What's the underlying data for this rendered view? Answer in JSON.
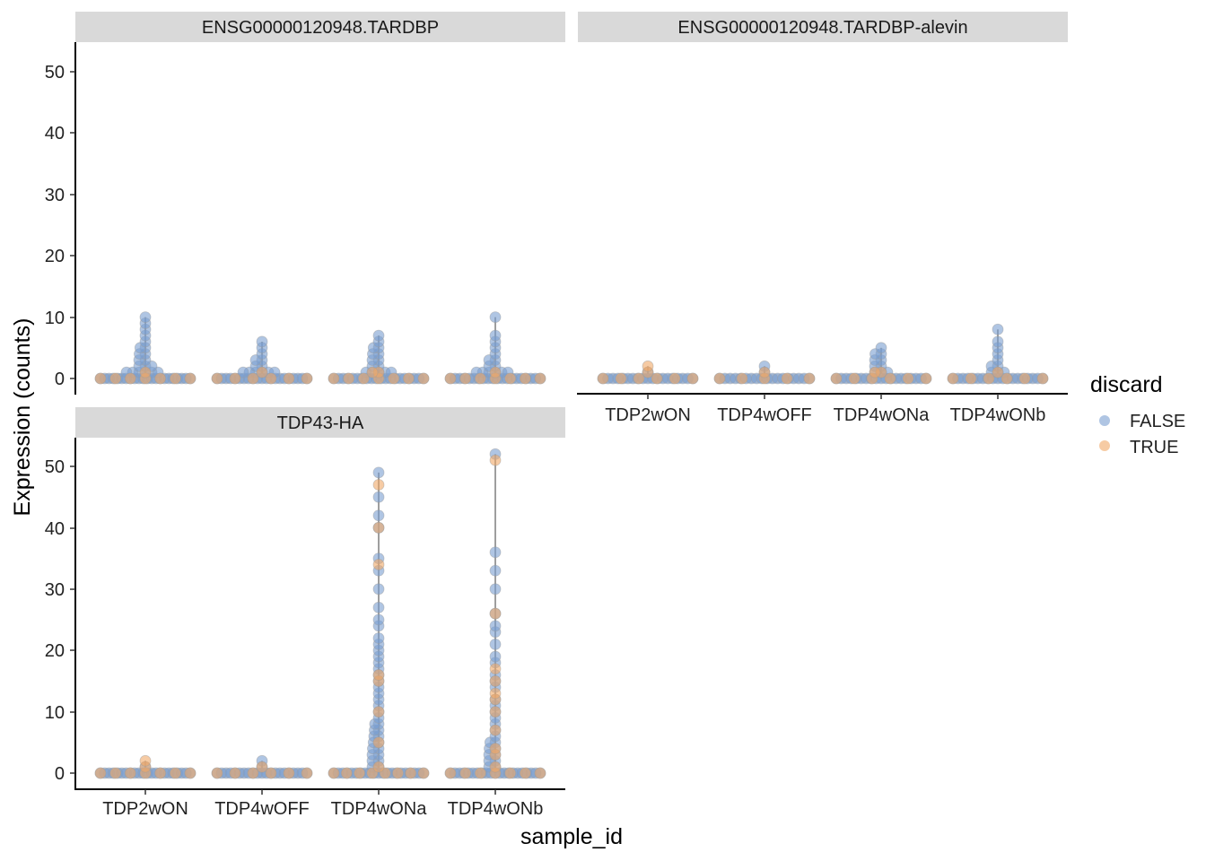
{
  "chart_data": {
    "type": "violin-scatter",
    "title": "",
    "xlabel": "sample_id",
    "ylabel": "Expression (counts)",
    "ylim": [
      0,
      54
    ],
    "yticks": [
      0,
      10,
      20,
      30,
      40,
      50
    ],
    "yticks_label": [
      "0",
      "10",
      "20",
      "30",
      "40",
      "50"
    ],
    "categories": [
      "TDP2wON",
      "TDP4wOFF",
      "TDP4wONa",
      "TDP4wONb"
    ],
    "legend": {
      "title": "discard",
      "entries": [
        {
          "label": "FALSE",
          "color": "#7a9fd1"
        },
        {
          "label": "TRUE",
          "color": "#f0a868"
        }
      ]
    },
    "colors": {
      "false": "#7a9fd1",
      "true": "#f0a868",
      "violin": "#9e9e9e",
      "strip": "#d0d0d0"
    },
    "panels": [
      {
        "strip": "ENSG00000120948.TARDBP",
        "max_values": [
          10,
          6,
          7,
          10
        ],
        "values_false": [
          [
            0,
            0,
            0,
            0,
            0,
            0,
            0,
            0,
            0,
            0,
            0,
            0,
            0,
            0,
            0,
            0,
            0,
            0,
            0,
            0,
            0,
            0,
            1,
            1,
            1,
            1,
            1,
            1,
            2,
            2,
            2,
            3,
            3,
            4,
            4,
            5,
            5,
            6,
            7,
            8,
            9,
            10
          ],
          [
            0,
            0,
            0,
            0,
            0,
            0,
            0,
            0,
            0,
            0,
            0,
            0,
            0,
            0,
            0,
            0,
            0,
            0,
            0,
            0,
            0,
            1,
            1,
            1,
            1,
            1,
            1,
            2,
            2,
            3,
            3,
            4,
            5,
            6
          ],
          [
            0,
            0,
            0,
            0,
            0,
            0,
            0,
            0,
            0,
            0,
            0,
            0,
            0,
            0,
            0,
            0,
            0,
            0,
            0,
            0,
            1,
            1,
            1,
            1,
            1,
            2,
            2,
            3,
            3,
            4,
            4,
            5,
            5,
            6,
            7
          ],
          [
            0,
            0,
            0,
            0,
            0,
            0,
            0,
            0,
            0,
            0,
            0,
            0,
            0,
            0,
            0,
            0,
            0,
            0,
            0,
            0,
            1,
            1,
            1,
            1,
            1,
            1,
            2,
            2,
            3,
            3,
            4,
            5,
            6,
            7,
            10
          ]
        ],
        "values_true": [
          [
            0,
            0,
            0,
            0,
            0,
            0,
            0,
            1
          ],
          [
            0,
            0,
            0,
            0,
            0,
            0,
            1
          ],
          [
            0,
            0,
            0,
            0,
            0,
            0,
            0,
            1,
            1
          ],
          [
            0,
            0,
            0,
            0,
            0,
            0,
            0,
            1
          ]
        ]
      },
      {
        "strip": "ENSG00000120948.TARDBP-alevin",
        "max_values": [
          2,
          2,
          5,
          8
        ],
        "values_false": [
          [
            0,
            0,
            0,
            0,
            0,
            0,
            0,
            0,
            0,
            0,
            0,
            0,
            0,
            0,
            0,
            0,
            0,
            0,
            0,
            1
          ],
          [
            0,
            0,
            0,
            0,
            0,
            0,
            0,
            0,
            0,
            0,
            0,
            0,
            0,
            0,
            0,
            0,
            0,
            0,
            1,
            2
          ],
          [
            0,
            0,
            0,
            0,
            0,
            0,
            0,
            0,
            0,
            0,
            0,
            0,
            0,
            0,
            0,
            0,
            0,
            0,
            0,
            1,
            1,
            1,
            2,
            2,
            3,
            3,
            4,
            4,
            5
          ],
          [
            0,
            0,
            0,
            0,
            0,
            0,
            0,
            0,
            0,
            0,
            0,
            0,
            0,
            0,
            0,
            0,
            0,
            0,
            0,
            1,
            1,
            1,
            2,
            2,
            3,
            4,
            5,
            6,
            8
          ]
        ],
        "values_true": [
          [
            0,
            0,
            0,
            0,
            0,
            0,
            1,
            2
          ],
          [
            0,
            0,
            0,
            0,
            0,
            1
          ],
          [
            0,
            0,
            0,
            0,
            0,
            0,
            1,
            1
          ],
          [
            0,
            0,
            0,
            0,
            0,
            0,
            1
          ]
        ]
      },
      {
        "strip": "TDP43-HA",
        "max_values": [
          2,
          2,
          49,
          52
        ],
        "values_false": [
          [
            0,
            0,
            0,
            0,
            0,
            0,
            0,
            0,
            0,
            0,
            0,
            0,
            0,
            0,
            0,
            0,
            0,
            0,
            0,
            0,
            0,
            0,
            1
          ],
          [
            0,
            0,
            0,
            0,
            0,
            0,
            0,
            0,
            0,
            0,
            0,
            0,
            0,
            0,
            0,
            0,
            0,
            0,
            0,
            0,
            0,
            1,
            2
          ],
          [
            0,
            0,
            0,
            0,
            0,
            0,
            0,
            0,
            0,
            0,
            0,
            0,
            0,
            0,
            0,
            0,
            0,
            0,
            0,
            0,
            0,
            1,
            1,
            2,
            2,
            3,
            3,
            4,
            4,
            5,
            5,
            6,
            6,
            7,
            7,
            8,
            8,
            9,
            10,
            11,
            12,
            13,
            14,
            15,
            16,
            17,
            18,
            19,
            20,
            21,
            22,
            24,
            25,
            27,
            30,
            33,
            35,
            40,
            42,
            45,
            49
          ],
          [
            0,
            0,
            0,
            0,
            0,
            0,
            0,
            0,
            0,
            0,
            0,
            0,
            0,
            0,
            0,
            0,
            0,
            0,
            0,
            0,
            0,
            1,
            1,
            2,
            2,
            3,
            3,
            4,
            4,
            5,
            5,
            6,
            7,
            8,
            9,
            10,
            11,
            12,
            14,
            15,
            16,
            18,
            19,
            21,
            23,
            24,
            26,
            30,
            33,
            36,
            52
          ]
        ],
        "values_true": [
          [
            0,
            0,
            0,
            0,
            0,
            0,
            0,
            1,
            2
          ],
          [
            0,
            0,
            0,
            0,
            0,
            0,
            1
          ],
          [
            0,
            0,
            0,
            0,
            0,
            0,
            0,
            0,
            1,
            5,
            10,
            15,
            16,
            34,
            40,
            47
          ],
          [
            0,
            0,
            0,
            0,
            0,
            0,
            0,
            1,
            3,
            4,
            7,
            10,
            12,
            13,
            15,
            17,
            26,
            51
          ]
        ]
      }
    ]
  }
}
